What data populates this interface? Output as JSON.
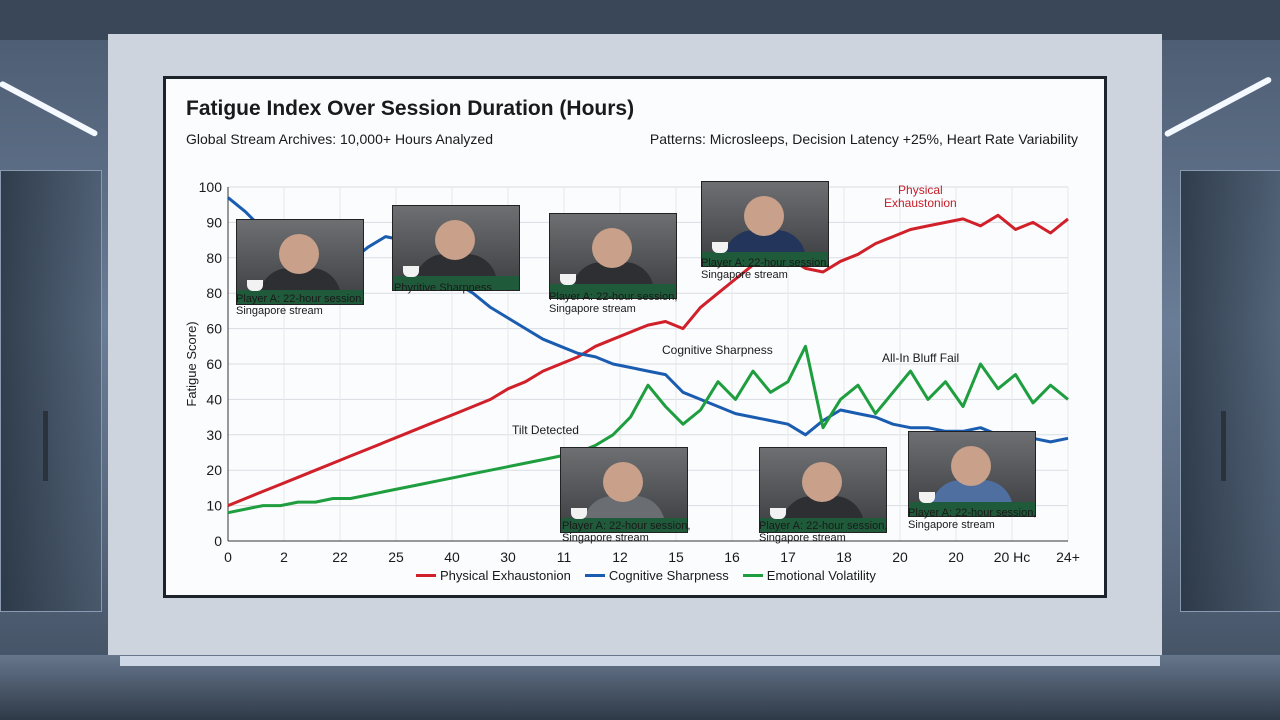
{
  "chart_data": {
    "type": "line",
    "title": "Fatigue Index Over Session Duration (Hours)",
    "subtitle_left": "Global Stream Archives: 10,000+ Hours Analyzed",
    "subtitle_right": "Patterns: Microsleeps, Decision Latency +25%, Heart Rate Variability",
    "ylabel": "Fatigue Score)",
    "xlabel": "",
    "ylim": [
      0,
      100
    ],
    "yticks": [
      "100",
      "90",
      "80",
      "80",
      "60",
      "60",
      "40",
      "30",
      "20",
      "10",
      "0"
    ],
    "xtick_labels": [
      "0",
      "2",
      "22",
      "25",
      "40",
      "30",
      "11",
      "12",
      "15",
      "16",
      "17",
      "18",
      "20",
      "20",
      "20 Hc",
      "24+"
    ],
    "x": [
      0,
      0.5,
      1,
      1.5,
      2,
      2.5,
      3,
      3.5,
      4,
      4.5,
      5,
      5.5,
      6,
      6.5,
      7,
      7.5,
      8,
      8.5,
      9,
      9.5,
      10,
      10.5,
      11,
      11.5,
      12,
      12.5,
      13,
      13.5,
      14,
      14.5,
      15,
      15.5,
      16,
      16.5,
      17,
      17.5,
      18,
      18.5,
      19,
      19.5,
      20,
      20.5,
      21,
      21.5,
      22,
      22.5,
      23,
      23.5,
      24
    ],
    "series": [
      {
        "name": "Physical Exhaustonion",
        "color": "#d0202a",
        "values": [
          10,
          12,
          14,
          16,
          18,
          20,
          22,
          24,
          26,
          28,
          30,
          32,
          34,
          36,
          38,
          40,
          43,
          45,
          48,
          50,
          52,
          55,
          57,
          59,
          61,
          62,
          60,
          66,
          70,
          74,
          78,
          82,
          80,
          77,
          76,
          79,
          81,
          84,
          86,
          88,
          89,
          90,
          91,
          89,
          92,
          88,
          90,
          87,
          91
        ]
      },
      {
        "name": "Cognitive Sharpness",
        "color": "#1a5cb0",
        "values": [
          97,
          93,
          88,
          84,
          80,
          78,
          77,
          79,
          83,
          86,
          85,
          81,
          77,
          73,
          70,
          66,
          63,
          60,
          57,
          55,
          53,
          52,
          50,
          49,
          48,
          47,
          42,
          40,
          38,
          36,
          35,
          34,
          33,
          30,
          34,
          37,
          36,
          35,
          33,
          32,
          32,
          31,
          31,
          32,
          30,
          29,
          29,
          28,
          29
        ]
      },
      {
        "name": "Emotional Volatility",
        "color": "#1e9e3e",
        "values": [
          8,
          9,
          10,
          10,
          11,
          11,
          12,
          12,
          13,
          14,
          15,
          16,
          17,
          18,
          19,
          20,
          21,
          22,
          23,
          24,
          25,
          27,
          30,
          35,
          44,
          38,
          33,
          37,
          45,
          40,
          48,
          42,
          45,
          55,
          32,
          40,
          44,
          36,
          42,
          48,
          40,
          45,
          38,
          50,
          43,
          47,
          39,
          44,
          40
        ]
      }
    ],
    "grid": true,
    "legend": "bottom"
  },
  "annotations": {
    "peak": "Physical\nExhaustonion",
    "cognitive": "Cognitive Sharpness",
    "bluff": "All-In Bluff Fail",
    "tilt": "Tilt Detected"
  },
  "thumbnails": [
    {
      "caption": "Player A: 22-hour session,\nSingapore stream"
    },
    {
      "caption": "Phyritive Sharpness"
    },
    {
      "caption": "Player A: 22-hour session,\nSingapore stream"
    },
    {
      "caption": "Player A: 22-hour session,\nSingapore stream"
    },
    {
      "caption": "Player A: 22-hour session,\nSingapore stream"
    },
    {
      "caption": "Player A: 22-hour session,\nSingapore stream"
    },
    {
      "caption": "Player A: 22-hour session,\nSingapore stream"
    }
  ]
}
